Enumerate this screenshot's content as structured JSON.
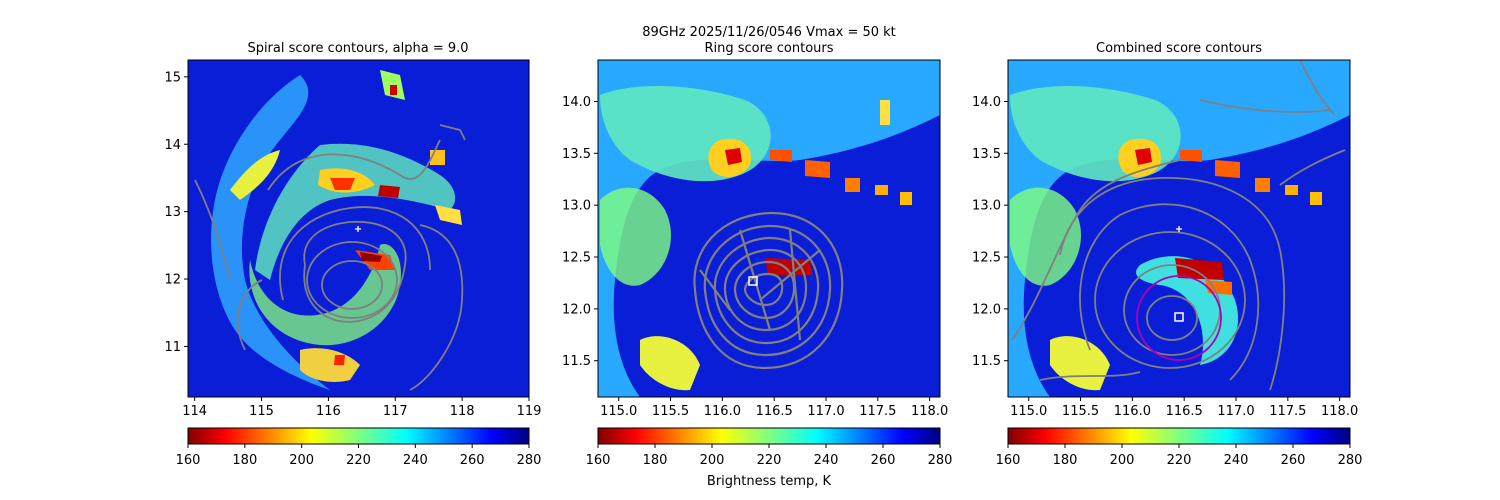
{
  "figure": {
    "suptitle_line1": "89GHz  2025/11/26/0546    Vmax = 50 kt",
    "colorbar_label": "Brightness temp, K"
  },
  "chart_data": [
    {
      "type": "heatmap",
      "title": "Spiral score contours, alpha =  9.0",
      "xlim": [
        113.9,
        119.0
      ],
      "ylim": [
        10.25,
        15.25
      ],
      "x_ticks": [
        "114",
        "115",
        "116",
        "117",
        "118",
        "119"
      ],
      "y_ticks": [
        "11",
        "12",
        "13",
        "14",
        "15"
      ],
      "cross_marker": [
        116.45,
        12.75
      ],
      "colorbar": {
        "range": [
          160,
          280
        ],
        "ticks": [
          "160",
          "180",
          "200",
          "220",
          "240",
          "260",
          "280"
        ],
        "colormap": "jet_r"
      }
    },
    {
      "type": "heatmap",
      "title": "Ring score contours",
      "xlim": [
        114.8,
        118.1
      ],
      "ylim": [
        11.15,
        14.4
      ],
      "x_ticks": [
        "115.0",
        "115.5",
        "116.0",
        "116.5",
        "117.0",
        "117.5",
        "118.0"
      ],
      "y_ticks": [
        "11.5",
        "12.0",
        "12.5",
        "13.0",
        "13.5",
        "14.0"
      ],
      "square_marker": [
        116.3,
        12.25
      ],
      "colorbar": {
        "range": [
          160,
          280
        ],
        "ticks": [
          "160",
          "180",
          "200",
          "220",
          "240",
          "260",
          "280"
        ],
        "colormap": "jet_r"
      }
    },
    {
      "type": "heatmap",
      "title": "Combined score contours",
      "xlim": [
        114.8,
        118.1
      ],
      "ylim": [
        11.15,
        14.4
      ],
      "x_ticks": [
        "115.0",
        "115.5",
        "116.0",
        "116.5",
        "117.0",
        "117.5",
        "118.0"
      ],
      "y_ticks": [
        "11.5",
        "12.0",
        "12.5",
        "13.0",
        "13.5",
        "14.0"
      ],
      "cross_marker": [
        116.45,
        12.75
      ],
      "square_marker": [
        116.45,
        11.9
      ],
      "ring_circle": {
        "center": [
          116.45,
          11.9
        ],
        "radius_deg": 0.4,
        "color": "#b000b0"
      },
      "colorbar": {
        "range": [
          160,
          280
        ],
        "ticks": [
          "160",
          "180",
          "200",
          "220",
          "240",
          "260",
          "280"
        ],
        "colormap": "jet_r"
      }
    }
  ]
}
